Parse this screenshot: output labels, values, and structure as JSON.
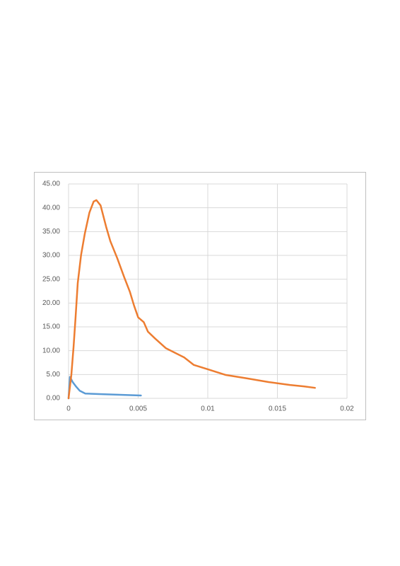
{
  "chart_data": {
    "type": "line",
    "xlim": [
      0,
      0.02
    ],
    "xticks": [
      0,
      0.005,
      0.01,
      0.015,
      0.02
    ],
    "ylim": [
      0,
      45
    ],
    "yticks": [
      {
        "value": 0,
        "label": "0.00"
      },
      {
        "value": 5,
        "label": "5.00"
      },
      {
        "value": 10,
        "label": "10.00"
      },
      {
        "value": 15,
        "label": "15.00"
      },
      {
        "value": 20,
        "label": "20.00"
      },
      {
        "value": 25,
        "label": "25.00"
      },
      {
        "value": 30,
        "label": "30.00"
      },
      {
        "value": 35,
        "label": "35.00"
      },
      {
        "value": 40,
        "label": "40.00"
      },
      {
        "value": 45,
        "label": "45.00"
      }
    ],
    "grid": true,
    "series": [
      {
        "color": "#5b9bd5",
        "x": [
          0,
          0.0001,
          0.0003,
          0.00056,
          0.0008,
          0.0012,
          0.0022,
          0.0037,
          0.0052
        ],
        "values": [
          0,
          4.5,
          3.4,
          2.4,
          1.6,
          1.0,
          0.9,
          0.75,
          0.6
        ]
      },
      {
        "color": "#ed7d31",
        "x": [
          0,
          0.0002,
          0.00036,
          0.0005,
          0.00066,
          0.0009,
          0.00117,
          0.0015,
          0.0018,
          0.002,
          0.0023,
          0.0027,
          0.003,
          0.0035,
          0.004,
          0.0044,
          0.0047,
          0.005,
          0.0054,
          0.0057,
          0.0062,
          0.007,
          0.0083,
          0.009,
          0.01,
          0.0113,
          0.0128,
          0.0144,
          0.0159,
          0.0169,
          0.0177
        ],
        "values": [
          0,
          4.9,
          10.8,
          16.8,
          24.2,
          30.1,
          34.6,
          39,
          41.3,
          41.6,
          40.5,
          36,
          33,
          29.4,
          25.4,
          22.4,
          19.5,
          17,
          16,
          14,
          12.6,
          10.5,
          8.6,
          7,
          6.1,
          4.9,
          4.2,
          3.4,
          2.8,
          2.5,
          2.2
        ]
      }
    ]
  }
}
